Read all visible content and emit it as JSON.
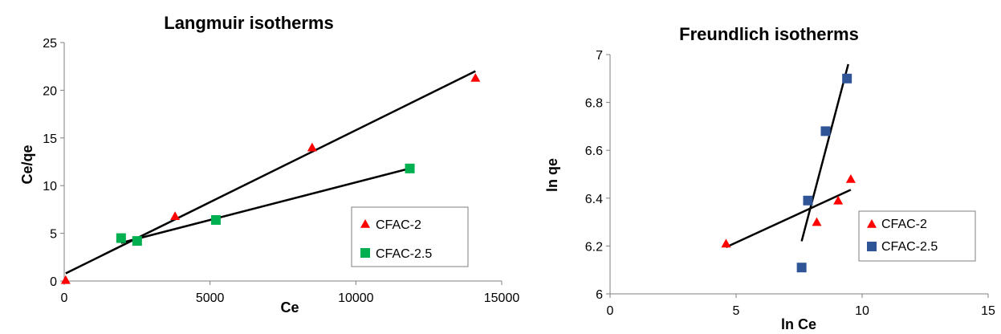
{
  "chart_data": [
    {
      "type": "scatter",
      "title": "Langmuir isotherms",
      "xlabel": "Ce",
      "ylabel": "Ce/qe",
      "xlim": [
        0,
        15000
      ],
      "ylim": [
        0,
        25
      ],
      "xticks": [
        0,
        5000,
        10000,
        15000
      ],
      "yticks": [
        0,
        5,
        10,
        15,
        20,
        25
      ],
      "grid": false,
      "legend_position": "bottom-right",
      "series": [
        {
          "name": "CFAC-2",
          "marker": "triangle",
          "color": "#ff0000",
          "x": [
            50,
            3800,
            8500,
            14100
          ],
          "y": [
            0.1,
            6.8,
            14.0,
            21.3
          ],
          "trendline": {
            "x": [
              50,
              14100
            ],
            "y": [
              0.8,
              22.0
            ]
          }
        },
        {
          "name": "CFAC-2.5",
          "marker": "square",
          "color": "#00b050",
          "x": [
            1950,
            2500,
            5200,
            11850
          ],
          "y": [
            4.5,
            4.2,
            6.4,
            11.8
          ],
          "trendline": {
            "x": [
              1950,
              11850
            ],
            "y": [
              4.0,
              11.8
            ]
          }
        }
      ]
    },
    {
      "type": "scatter",
      "title": "Freundlich isotherms",
      "xlabel": "ln Ce",
      "ylabel": "ln qe",
      "xlim": [
        0,
        15
      ],
      "ylim": [
        6,
        7
      ],
      "xticks": [
        0,
        5,
        10,
        15
      ],
      "yticks": [
        6,
        6.2,
        6.4,
        6.6,
        6.8,
        7
      ],
      "grid": false,
      "legend_position": "bottom-right",
      "series": [
        {
          "name": "CFAC-2",
          "marker": "triangle",
          "color": "#ff0000",
          "x": [
            4.6,
            8.2,
            9.05,
            9.55
          ],
          "y": [
            6.21,
            6.3,
            6.39,
            6.48
          ],
          "trendline": {
            "x": [
              4.6,
              9.55
            ],
            "y": [
              6.195,
              6.435
            ]
          }
        },
        {
          "name": "CFAC-2.5",
          "marker": "square",
          "color": "#2f5597",
          "x": [
            7.6,
            7.85,
            8.55,
            9.4
          ],
          "y": [
            6.11,
            6.39,
            6.68,
            6.9
          ],
          "trendline": {
            "x": [
              7.6,
              9.45
            ],
            "y": [
              6.22,
              6.96
            ]
          }
        }
      ]
    }
  ]
}
